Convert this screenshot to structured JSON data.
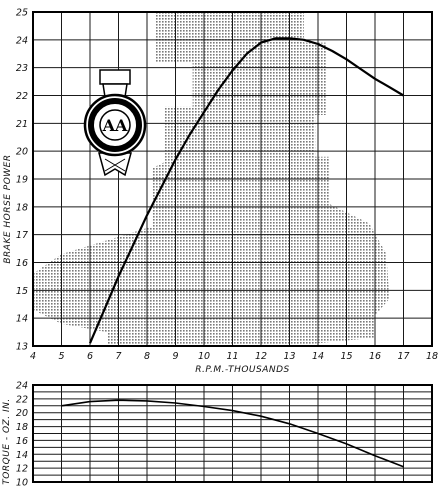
{
  "chart_data": [
    {
      "type": "line",
      "xlabel": "R.P.M.-THOUSANDS",
      "ylabel": "BRAKE HORSE POWER",
      "xlim": [
        4,
        18
      ],
      "ylim": [
        13,
        25
      ],
      "x_ticks": [
        "4",
        "5",
        "6",
        "7",
        "8",
        "9",
        "10",
        "11",
        "12",
        "13",
        "14",
        "15",
        "16",
        "17",
        "18"
      ],
      "y_ticks": [
        "13",
        "14",
        "15",
        "16",
        "17",
        "18",
        "19",
        "20",
        "21",
        "22",
        "23",
        "24",
        "25"
      ],
      "grid": true,
      "background_image": "engine-silhouette",
      "series": [
        {
          "x": [
            6,
            6.5,
            7,
            7.5,
            8,
            8.5,
            9,
            9.5,
            10,
            10.5,
            11,
            11.5,
            12,
            12.5,
            13,
            13.5,
            14,
            14.5,
            15,
            15.5,
            16,
            16.5,
            17
          ],
          "values": [
            13.1,
            14.3,
            15.5,
            16.6,
            17.7,
            18.7,
            19.7,
            20.6,
            21.4,
            22.2,
            22.9,
            23.5,
            23.9,
            24.05,
            24.05,
            24.0,
            23.85,
            23.6,
            23.3,
            22.95,
            22.6,
            22.3,
            22.0
          ],
          "color": "#000000"
        }
      ],
      "emblem": {
        "name": "automobile-club-badge",
        "text": "AUTOMOBILE ASSOCIATION",
        "monogram": "AA"
      }
    },
    {
      "type": "line",
      "ylabel": "TORQUE - OZ. IN.",
      "xlim": [
        4,
        18
      ],
      "ylim": [
        10,
        24
      ],
      "y_ticks": [
        "10",
        "12",
        "14",
        "16",
        "18",
        "20",
        "22",
        "24"
      ],
      "grid": true,
      "series": [
        {
          "x": [
            5,
            6,
            7,
            8,
            9,
            10,
            11,
            12,
            13,
            14,
            15,
            16,
            17
          ],
          "values": [
            21.0,
            21.6,
            21.8,
            21.7,
            21.4,
            20.9,
            20.3,
            19.5,
            18.4,
            17.0,
            15.5,
            13.8,
            12.2
          ],
          "color": "#000000"
        }
      ]
    }
  ]
}
